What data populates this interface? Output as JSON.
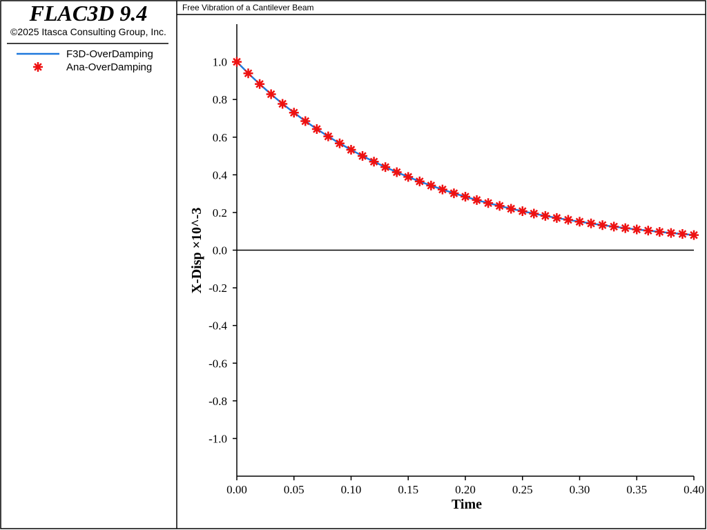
{
  "header": {
    "product": "FLAC3D 9.4",
    "copyright": "©2025 Itasca Consulting Group, Inc."
  },
  "chart_data": {
    "type": "line",
    "title": "Free Vibration of a Cantilever Beam",
    "x_label": "Time",
    "y_label": "X-Disp ×10^-3",
    "x": [
      0.0,
      0.01,
      0.02,
      0.03,
      0.04,
      0.05,
      0.06,
      0.07,
      0.08,
      0.09,
      0.1,
      0.11,
      0.12,
      0.13,
      0.14,
      0.15,
      0.16,
      0.17,
      0.18,
      0.19,
      0.2,
      0.21,
      0.22,
      0.23,
      0.24,
      0.25,
      0.26,
      0.27,
      0.28,
      0.29,
      0.3,
      0.31,
      0.32,
      0.33,
      0.34,
      0.35,
      0.36,
      0.37,
      0.38,
      0.39,
      0.4
    ],
    "series": [
      {
        "name": "F3D-OverDamping",
        "color": "#1e78dc",
        "style": "line",
        "values": [
          1.0,
          0.939,
          0.882,
          0.828,
          0.777,
          0.73,
          0.685,
          0.643,
          0.604,
          0.567,
          0.533,
          0.5,
          0.47,
          0.441,
          0.414,
          0.389,
          0.365,
          0.343,
          0.322,
          0.302,
          0.284,
          0.266,
          0.25,
          0.235,
          0.22,
          0.207,
          0.194,
          0.182,
          0.171,
          0.161,
          0.151,
          0.142,
          0.133,
          0.125,
          0.117,
          0.11,
          0.104,
          0.097,
          0.091,
          0.086,
          0.08
        ]
      },
      {
        "name": "Ana-OverDamping",
        "color": "#ee1111",
        "style": "asterisk",
        "values": [
          1.0,
          0.939,
          0.882,
          0.828,
          0.777,
          0.73,
          0.685,
          0.643,
          0.604,
          0.567,
          0.533,
          0.5,
          0.47,
          0.441,
          0.414,
          0.389,
          0.365,
          0.343,
          0.322,
          0.302,
          0.284,
          0.266,
          0.25,
          0.235,
          0.22,
          0.207,
          0.194,
          0.182,
          0.171,
          0.161,
          0.151,
          0.142,
          0.133,
          0.125,
          0.117,
          0.11,
          0.104,
          0.097,
          0.091,
          0.086,
          0.08
        ]
      }
    ],
    "xlim": [
      0,
      0.4
    ],
    "ylim": [
      -1.2,
      1.2
    ],
    "xticks": [
      {
        "value": 0,
        "label": "0.00"
      },
      {
        "value": 0.05,
        "label": "0.05"
      },
      {
        "value": 0.1,
        "label": "0.10"
      },
      {
        "value": 0.15,
        "label": "0.15"
      },
      {
        "value": 0.2,
        "label": "0.20"
      },
      {
        "value": 0.25,
        "label": "0.25"
      },
      {
        "value": 0.3,
        "label": "0.30"
      },
      {
        "value": 0.35,
        "label": "0.35"
      },
      {
        "value": 0.4,
        "label": "0.40"
      }
    ],
    "yticks": [
      {
        "value": -1,
        "label": "-1.0"
      },
      -0.8,
      -0.6,
      -0.4,
      -0.2,
      {
        "value": 0,
        "label": "0.0"
      },
      0.2,
      0.4,
      0.6,
      0.8,
      {
        "value": 1,
        "label": "1.0"
      }
    ]
  }
}
